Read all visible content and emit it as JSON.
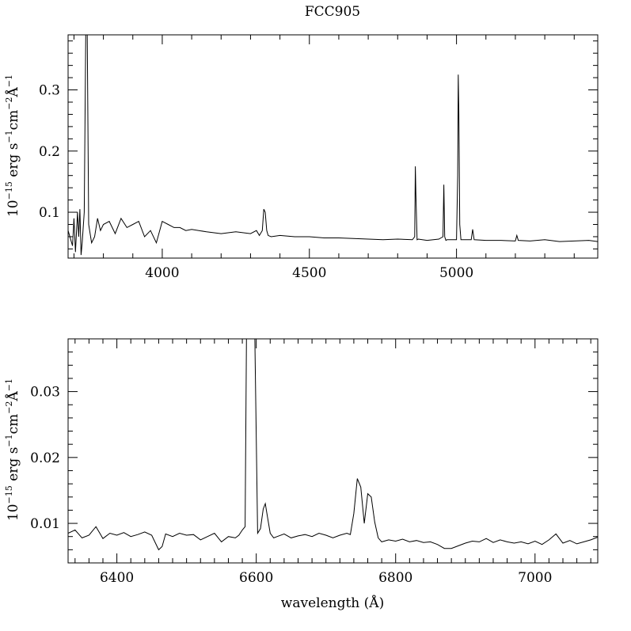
{
  "chart_data": [
    {
      "type": "line",
      "title": "FCC905",
      "ylabel_parts": [
        "10",
        "−15",
        " erg s",
        "−1",
        "cm",
        "−2",
        "Å",
        "−1"
      ],
      "xlabel": "",
      "xlim": [
        3680,
        5480
      ],
      "ylim": [
        0.025,
        0.39
      ],
      "x_ticks": [
        4000,
        4500,
        5000
      ],
      "y_ticks": [
        0.1,
        0.2,
        0.3
      ],
      "y_tick_labels": [
        "0.1",
        "0.2",
        "0.3"
      ],
      "series": [
        {
          "x": [
            3680,
            3695,
            3700,
            3705,
            3712,
            3716,
            3720,
            3724,
            3728,
            3735,
            3740,
            3745,
            3750,
            3760,
            3770,
            3780,
            3790,
            3800,
            3820,
            3840,
            3860,
            3880,
            3900,
            3920,
            3940,
            3960,
            3980,
            4000,
            4020,
            4040,
            4060,
            4080,
            4100,
            4150,
            4200,
            4250,
            4300,
            4320,
            4330,
            4340,
            4345,
            4350,
            4355,
            4360,
            4370,
            4400,
            4450,
            4500,
            4550,
            4600,
            4650,
            4700,
            4750,
            4800,
            4850,
            4858,
            4860,
            4862,
            4866,
            4870,
            4900,
            4940,
            4954,
            4957,
            4960,
            4964,
            4968,
            5000,
            5004,
            5006,
            5008,
            5011,
            5015,
            5020,
            5050,
            5055,
            5060,
            5100,
            5150,
            5200,
            5205,
            5210,
            5250,
            5300,
            5350,
            5400,
            5450,
            5480
          ],
          "y": [
            0.07,
            0.045,
            0.09,
            0.035,
            0.1,
            0.06,
            0.105,
            0.03,
            0.05,
            0.1,
            0.39,
            0.39,
            0.08,
            0.05,
            0.06,
            0.09,
            0.07,
            0.08,
            0.085,
            0.065,
            0.09,
            0.075,
            0.08,
            0.085,
            0.06,
            0.07,
            0.05,
            0.085,
            0.08,
            0.075,
            0.075,
            0.07,
            0.072,
            0.068,
            0.065,
            0.068,
            0.065,
            0.07,
            0.062,
            0.07,
            0.105,
            0.1,
            0.07,
            0.062,
            0.06,
            0.062,
            0.06,
            0.06,
            0.058,
            0.058,
            0.057,
            0.056,
            0.055,
            0.056,
            0.055,
            0.06,
            0.175,
            0.13,
            0.055,
            0.056,
            0.054,
            0.056,
            0.06,
            0.145,
            0.06,
            0.054,
            0.055,
            0.055,
            0.16,
            0.325,
            0.26,
            0.08,
            0.055,
            0.055,
            0.055,
            0.072,
            0.055,
            0.054,
            0.054,
            0.053,
            0.062,
            0.054,
            0.053,
            0.055,
            0.052,
            0.053,
            0.054,
            0.052
          ]
        }
      ]
    },
    {
      "type": "line",
      "title": "",
      "ylabel_parts": [
        "10",
        "−15",
        " erg s",
        "−1",
        "cm",
        "−2",
        "Å",
        "−1"
      ],
      "xlabel": "wavelength (Å)",
      "xlim": [
        6330,
        7090
      ],
      "ylim": [
        0.004,
        0.038
      ],
      "x_ticks": [
        6400,
        6600,
        6800,
        7000
      ],
      "y_ticks": [
        0.01,
        0.02,
        0.03
      ],
      "y_tick_labels": [
        "0.01",
        "0.02",
        "0.03"
      ],
      "series": [
        {
          "x": [
            6330,
            6340,
            6350,
            6360,
            6370,
            6380,
            6390,
            6400,
            6410,
            6420,
            6430,
            6440,
            6450,
            6460,
            6465,
            6470,
            6480,
            6490,
            6500,
            6510,
            6520,
            6530,
            6540,
            6550,
            6560,
            6570,
            6575,
            6580,
            6584,
            6586,
            6590,
            6594,
            6598,
            6602,
            6606,
            6610,
            6613,
            6616,
            6620,
            6625,
            6630,
            6640,
            6650,
            6660,
            6670,
            6680,
            6690,
            6700,
            6710,
            6720,
            6730,
            6735,
            6740,
            6745,
            6750,
            6755,
            6760,
            6765,
            6770,
            6775,
            6780,
            6790,
            6800,
            6810,
            6820,
            6830,
            6840,
            6850,
            6860,
            6870,
            6880,
            6890,
            6900,
            6910,
            6920,
            6930,
            6940,
            6950,
            6960,
            6970,
            6980,
            6990,
            7000,
            7010,
            7020,
            7030,
            7040,
            7050,
            7060,
            7070,
            7080,
            7090
          ],
          "y": [
            0.0085,
            0.009,
            0.0078,
            0.0082,
            0.0095,
            0.0077,
            0.0085,
            0.0082,
            0.0086,
            0.008,
            0.0083,
            0.0087,
            0.0082,
            0.006,
            0.0065,
            0.0084,
            0.008,
            0.0085,
            0.0082,
            0.0083,
            0.0075,
            0.008,
            0.0085,
            0.0072,
            0.008,
            0.0078,
            0.0082,
            0.009,
            0.0095,
            0.038,
            0.038,
            0.038,
            0.038,
            0.0085,
            0.0092,
            0.0122,
            0.013,
            0.011,
            0.0085,
            0.0078,
            0.008,
            0.0084,
            0.0078,
            0.0081,
            0.0083,
            0.008,
            0.0085,
            0.0082,
            0.0078,
            0.0082,
            0.0085,
            0.0083,
            0.0115,
            0.0168,
            0.0155,
            0.01,
            0.0145,
            0.014,
            0.0102,
            0.0078,
            0.0072,
            0.0075,
            0.0073,
            0.0076,
            0.0072,
            0.0074,
            0.0071,
            0.0072,
            0.0068,
            0.0062,
            0.0062,
            0.0066,
            0.007,
            0.0073,
            0.0072,
            0.0077,
            0.0071,
            0.0075,
            0.0072,
            0.007,
            0.0072,
            0.0069,
            0.0073,
            0.0068,
            0.0075,
            0.0084,
            0.007,
            0.0074,
            0.0069,
            0.0072,
            0.0075,
            0.0079
          ]
        }
      ]
    }
  ]
}
